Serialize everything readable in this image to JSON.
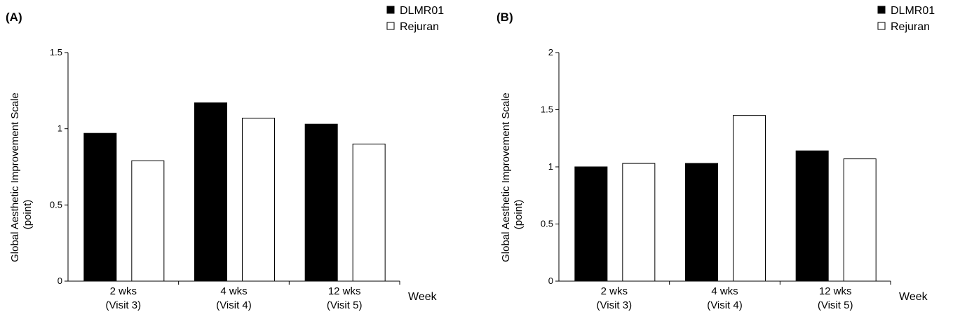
{
  "chart_data": [
    {
      "type": "bar",
      "panel_label": "(A)",
      "categories": [
        [
          "2 wks",
          "(Visit 3)"
        ],
        [
          "4 wks",
          "(Visit 4)"
        ],
        [
          "12 wks",
          "(Visit 5)"
        ]
      ],
      "xlabel": "Week",
      "ylabel": [
        "Global Aesthetic Improvement Scale",
        "(point)"
      ],
      "ylim": [
        0,
        1.5
      ],
      "yticks": [
        0,
        0.5,
        1,
        1.5
      ],
      "ytick_labels": [
        "0",
        "0.5",
        "1",
        "1.5"
      ],
      "legend_position": "top-right",
      "series": [
        {
          "name": "DLMR01",
          "fill": "#000000",
          "values": [
            0.97,
            1.17,
            1.03
          ]
        },
        {
          "name": "Rejuran",
          "fill": "#ffffff",
          "values": [
            0.79,
            1.07,
            0.9
          ]
        }
      ]
    },
    {
      "type": "bar",
      "panel_label": "(B)",
      "categories": [
        [
          "2 wks",
          "(Visit 3)"
        ],
        [
          "4 wks",
          "(Visit 4)"
        ],
        [
          "12 wks",
          "(Visit 5)"
        ]
      ],
      "xlabel": "Week",
      "ylabel": [
        "Global Aesthetic Improvement Scale",
        "(point)"
      ],
      "ylim": [
        0,
        2
      ],
      "yticks": [
        0,
        0.5,
        1,
        1.5,
        2
      ],
      "ytick_labels": [
        "0",
        "0.5",
        "1",
        "1.5",
        "2"
      ],
      "legend_position": "top-right",
      "series": [
        {
          "name": "DLMR01",
          "fill": "#000000",
          "values": [
            1.0,
            1.03,
            1.14
          ]
        },
        {
          "name": "Rejuran",
          "fill": "#ffffff",
          "values": [
            1.03,
            1.45,
            1.07
          ]
        }
      ]
    }
  ]
}
